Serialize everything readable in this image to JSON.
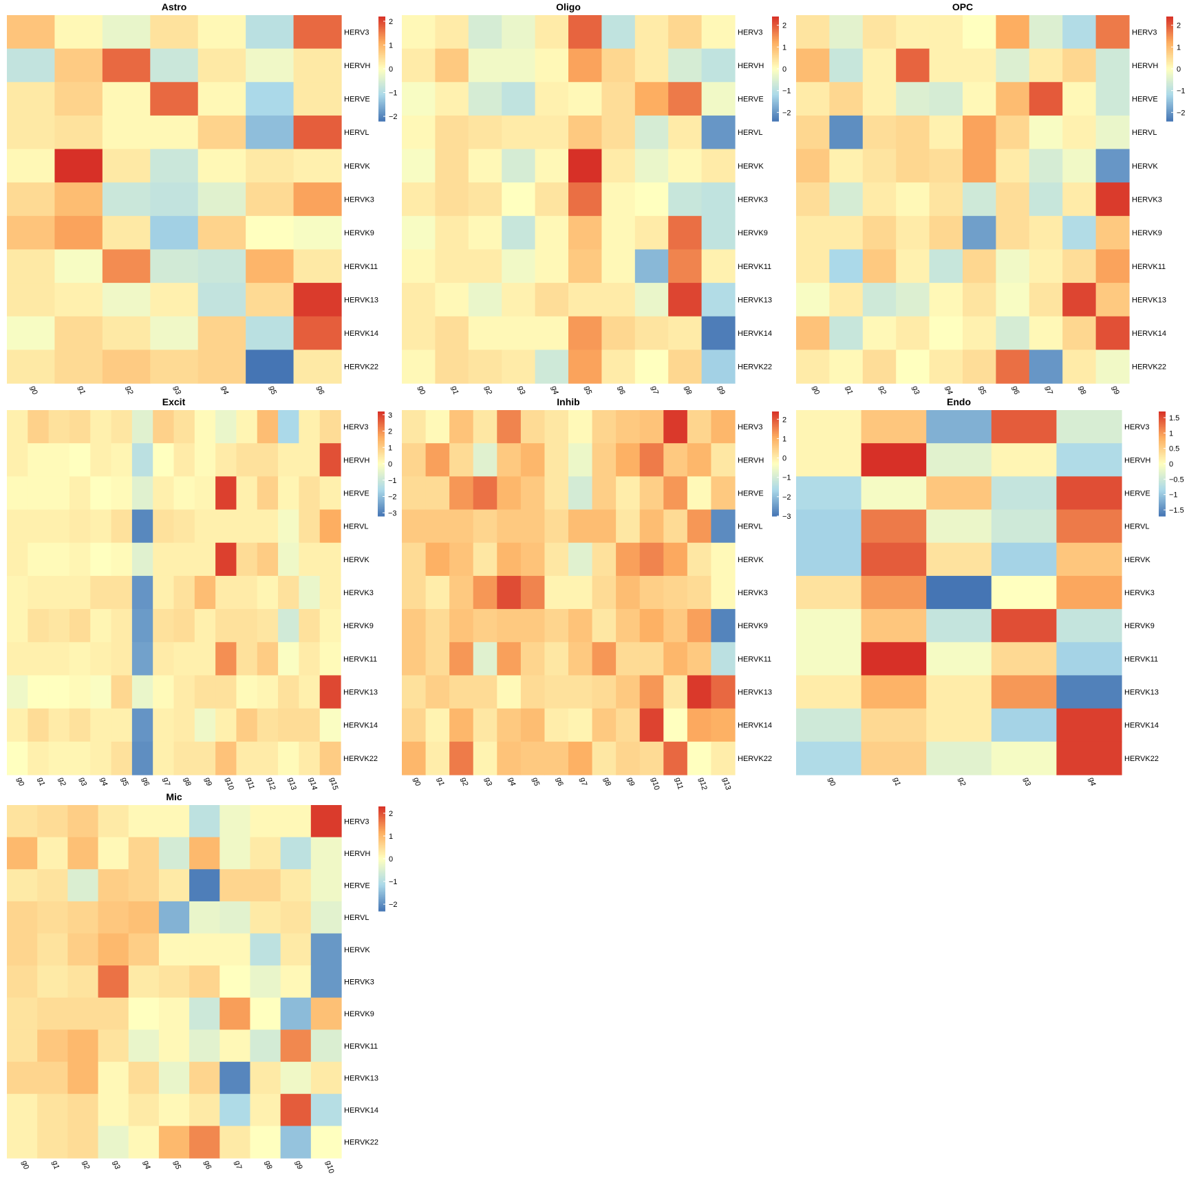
{
  "chart_data": {
    "type": "heatmap",
    "colors": {
      "low": "#4575b4",
      "mid_low": "#abd9e9",
      "mid": "#ffffbf",
      "mid_high": "#fdae61",
      "high": "#d73027"
    },
    "rows": [
      "HERV3",
      "HERVH",
      "HERVE",
      "HERVL",
      "HERVK",
      "HERVK3",
      "HERVK9",
      "HERVK11",
      "HERVK13",
      "HERVK14",
      "HERVK22"
    ],
    "panels": [
      {
        "title": "Astro",
        "columns": [
          "g0",
          "g1",
          "g2",
          "g3",
          "g4",
          "g5",
          "g6"
        ],
        "legend_ticks": [
          2,
          1,
          0,
          -1,
          -2
        ],
        "range": [
          -2.2,
          2.2
        ],
        "values": [
          [
            0.8,
            0.1,
            -0.3,
            0.4,
            0.1,
            -0.9,
            1.7
          ],
          [
            -0.8,
            0.7,
            1.7,
            -0.7,
            0.3,
            -0.2,
            0.3
          ],
          [
            0.3,
            0.6,
            0.1,
            1.7,
            0.1,
            -1.1,
            0.3
          ],
          [
            0.3,
            0.4,
            0.1,
            0.1,
            0.6,
            -1.4,
            1.8
          ],
          [
            0.1,
            2.2,
            0.3,
            -0.7,
            0.1,
            0.3,
            0.2
          ],
          [
            0.5,
            0.9,
            -0.7,
            -0.8,
            -0.4,
            0.5,
            1.2
          ],
          [
            0.8,
            1.2,
            0.3,
            -1.2,
            0.6,
            0.0,
            -0.1
          ],
          [
            0.3,
            -0.1,
            1.4,
            -0.6,
            -0.7,
            1.0,
            0.3
          ],
          [
            0.3,
            0.2,
            -0.2,
            0.2,
            -0.8,
            0.5,
            2.1
          ],
          [
            -0.1,
            0.5,
            0.3,
            -0.2,
            0.6,
            -0.9,
            1.8
          ],
          [
            0.3,
            0.5,
            0.7,
            0.5,
            0.6,
            -2.2,
            0.3
          ]
        ]
      },
      {
        "title": "Oligo",
        "columns": [
          "g0",
          "g1",
          "g2",
          "g3",
          "g4",
          "g5",
          "g6",
          "g7",
          "g8",
          "g9"
        ],
        "legend_ticks": [
          2,
          1,
          0,
          -1,
          -2
        ],
        "range": [
          -2.4,
          2.4
        ],
        "values": [
          [
            0.1,
            0.3,
            -0.6,
            -0.3,
            0.3,
            1.9,
            -0.9,
            0.3,
            0.6,
            0.1
          ],
          [
            0.3,
            0.8,
            -0.2,
            -0.2,
            0.1,
            1.3,
            0.6,
            0.3,
            -0.6,
            -0.9
          ],
          [
            -0.1,
            0.2,
            -0.6,
            -0.9,
            0.2,
            0.1,
            0.5,
            1.2,
            1.7,
            -0.2
          ],
          [
            0.1,
            0.5,
            0.4,
            0.3,
            0.3,
            0.8,
            0.5,
            -0.6,
            0.3,
            -2.0
          ],
          [
            -0.1,
            0.5,
            0.1,
            -0.6,
            0.1,
            2.4,
            0.3,
            -0.3,
            0.1,
            0.3
          ],
          [
            0.3,
            0.5,
            0.4,
            0.0,
            0.4,
            1.8,
            0.1,
            0.0,
            -0.8,
            -0.9
          ],
          [
            -0.1,
            0.3,
            0.1,
            -0.8,
            0.1,
            0.9,
            0.1,
            0.3,
            1.8,
            -0.9
          ],
          [
            0.1,
            0.3,
            0.3,
            -0.2,
            0.1,
            0.8,
            0.1,
            -1.6,
            1.6,
            0.2
          ],
          [
            0.3,
            0.1,
            -0.3,
            0.2,
            0.5,
            0.3,
            0.3,
            -0.3,
            2.2,
            -1.1
          ],
          [
            0.3,
            0.5,
            0.1,
            0.1,
            0.1,
            1.4,
            0.6,
            0.4,
            0.3,
            -2.3
          ],
          [
            0.1,
            0.5,
            0.4,
            0.3,
            -0.7,
            1.3,
            0.3,
            0.0,
            0.6,
            -1.3
          ]
        ]
      },
      {
        "title": "OPC",
        "columns": [
          "g0",
          "g1",
          "g2",
          "g3",
          "g4",
          "g5",
          "g6",
          "g7",
          "g8",
          "g9"
        ],
        "legend_ticks": [
          2,
          1,
          0,
          -1,
          -2
        ],
        "range": [
          -2.4,
          2.4
        ],
        "values": [
          [
            0.4,
            -0.4,
            0.4,
            0.2,
            0.2,
            0.0,
            1.2,
            -0.5,
            -1.1,
            1.7
          ],
          [
            1.0,
            -0.8,
            0.2,
            1.9,
            0.2,
            0.2,
            -0.5,
            0.3,
            0.6,
            -0.7
          ],
          [
            0.3,
            0.6,
            0.2,
            -0.5,
            -0.6,
            0.1,
            1.0,
            2.0,
            0.1,
            -0.7
          ],
          [
            0.6,
            -2.1,
            0.5,
            0.6,
            0.2,
            1.3,
            0.6,
            -0.1,
            0.2,
            -0.3
          ],
          [
            0.8,
            0.2,
            0.4,
            0.6,
            0.5,
            1.3,
            0.3,
            -0.6,
            -0.2,
            -2.0
          ],
          [
            0.5,
            -0.6,
            0.3,
            0.1,
            0.4,
            -0.7,
            0.5,
            -0.8,
            0.3,
            2.3
          ],
          [
            0.3,
            0.3,
            0.6,
            0.3,
            0.6,
            -1.9,
            0.5,
            0.3,
            -1.1,
            0.8
          ],
          [
            0.3,
            -1.2,
            0.8,
            0.2,
            -0.8,
            0.6,
            -0.2,
            0.2,
            0.5,
            1.3
          ],
          [
            -0.1,
            0.3,
            -0.7,
            -0.5,
            0.1,
            0.4,
            -0.1,
            0.4,
            2.2,
            0.8
          ],
          [
            0.9,
            -0.8,
            0.1,
            0.3,
            0.0,
            0.2,
            -0.6,
            0.1,
            0.6,
            2.1
          ],
          [
            0.3,
            0.1,
            0.5,
            0.0,
            0.3,
            0.5,
            1.8,
            -2.0,
            0.3,
            -0.2
          ]
        ]
      },
      {
        "title": "Excit",
        "columns": [
          "g0",
          "g1",
          "g2",
          "g3",
          "g4",
          "g5",
          "g6",
          "g7",
          "g8",
          "g9",
          "g10",
          "g11",
          "g12",
          "g13",
          "g14",
          "g15"
        ],
        "legend_ticks": [
          3,
          2,
          1,
          0,
          -1,
          -2,
          -3
        ],
        "range": [
          -3.2,
          3.2
        ],
        "values": [
          [
            0.3,
            0.9,
            0.6,
            0.7,
            0.3,
            0.5,
            -0.6,
            0.9,
            0.6,
            0.1,
            -0.4,
            0.2,
            1.3,
            -1.6,
            0.3,
            0.7
          ],
          [
            0.3,
            0.1,
            0.1,
            0.0,
            0.3,
            0.2,
            -1.3,
            0.0,
            0.4,
            0.1,
            0.4,
            0.6,
            0.6,
            0.3,
            0.3,
            2.8
          ],
          [
            0.1,
            0.1,
            0.1,
            0.3,
            0.0,
            0.1,
            -0.6,
            0.3,
            0.1,
            0.2,
            3.0,
            0.3,
            0.9,
            0.2,
            0.6,
            0.3
          ],
          [
            0.3,
            0.3,
            0.3,
            0.4,
            0.3,
            0.6,
            -2.9,
            0.6,
            0.5,
            0.3,
            0.3,
            0.3,
            0.3,
            -0.2,
            0.6,
            1.6
          ],
          [
            0.3,
            0.1,
            0.1,
            0.2,
            0.0,
            0.1,
            -0.6,
            0.3,
            0.3,
            0.3,
            3.0,
            0.7,
            1.0,
            -0.3,
            0.3,
            0.3
          ],
          [
            0.2,
            0.3,
            0.3,
            0.3,
            0.6,
            0.6,
            -2.7,
            0.3,
            0.6,
            1.3,
            0.4,
            0.4,
            0.2,
            0.6,
            -0.4,
            0.3
          ],
          [
            0.2,
            0.6,
            0.5,
            0.7,
            0.2,
            0.4,
            -2.6,
            0.6,
            0.7,
            0.3,
            0.6,
            0.6,
            0.5,
            -0.9,
            0.6,
            0.2
          ],
          [
            0.3,
            0.3,
            0.3,
            0.2,
            0.3,
            0.4,
            -2.5,
            0.4,
            0.3,
            0.3,
            2.0,
            0.6,
            1.0,
            -0.1,
            0.4,
            0.1
          ],
          [
            -0.3,
            0.0,
            0.0,
            0.1,
            -0.1,
            0.8,
            -0.4,
            0.1,
            0.4,
            0.6,
            0.6,
            0.1,
            0.2,
            0.6,
            0.3,
            2.9
          ],
          [
            0.3,
            0.7,
            0.4,
            0.6,
            0.3,
            0.3,
            -2.7,
            0.3,
            0.4,
            -0.3,
            0.3,
            1.0,
            0.6,
            0.7,
            0.7,
            -0.1
          ],
          [
            0.0,
            0.3,
            0.2,
            0.2,
            0.3,
            0.6,
            -2.8,
            0.3,
            0.5,
            0.5,
            1.2,
            0.4,
            0.4,
            0.1,
            0.4,
            1.0
          ]
        ]
      },
      {
        "title": "Inhib",
        "columns": [
          "g0",
          "g1",
          "g2",
          "g3",
          "g4",
          "g5",
          "g6",
          "g7",
          "g8",
          "g9",
          "g10",
          "g11",
          "g12",
          "g13"
        ],
        "legend_ticks": [
          2,
          1,
          0,
          -1,
          -2,
          -3
        ],
        "range": [
          -3.0,
          2.4
        ],
        "values": [
          [
            0.1,
            -0.2,
            0.7,
            0.1,
            1.5,
            0.3,
            0.1,
            -0.2,
            0.4,
            0.6,
            0.7,
            2.3,
            0.4,
            0.9
          ],
          [
            0.4,
            1.2,
            0.3,
            -0.8,
            0.6,
            0.9,
            0.1,
            -0.6,
            0.5,
            1.0,
            1.6,
            0.6,
            0.9,
            0.1
          ],
          [
            0.3,
            0.3,
            1.3,
            1.7,
            0.9,
            0.6,
            0.1,
            -1.0,
            0.5,
            0.0,
            0.5,
            1.3,
            -0.2,
            0.6
          ],
          [
            0.6,
            0.6,
            0.6,
            0.4,
            0.6,
            0.6,
            0.3,
            0.8,
            0.8,
            0.1,
            0.8,
            0.3,
            1.3,
            -2.7
          ],
          [
            0.3,
            1.0,
            0.7,
            0.1,
            0.9,
            0.7,
            0.1,
            -0.8,
            0.2,
            1.2,
            1.5,
            1.1,
            0.1,
            -0.2
          ],
          [
            0.3,
            0.0,
            0.6,
            1.3,
            2.1,
            1.5,
            -0.1,
            -0.1,
            0.3,
            0.8,
            0.5,
            0.4,
            0.3,
            -0.2
          ],
          [
            0.6,
            0.3,
            0.7,
            0.5,
            0.6,
            0.6,
            0.4,
            0.7,
            0.1,
            0.6,
            1.0,
            0.6,
            1.2,
            -2.8
          ],
          [
            0.6,
            0.3,
            1.3,
            -0.8,
            1.2,
            0.4,
            0.1,
            0.6,
            1.3,
            0.3,
            0.3,
            0.9,
            0.6,
            -1.4
          ],
          [
            0.2,
            0.5,
            0.3,
            0.3,
            -0.2,
            0.3,
            0.2,
            0.2,
            0.3,
            0.6,
            1.3,
            0.1,
            2.3,
            1.8
          ],
          [
            0.4,
            -0.1,
            0.9,
            0.1,
            0.6,
            0.8,
            0.0,
            -0.1,
            0.6,
            0.3,
            2.2,
            -0.3,
            1.1,
            1.0
          ],
          [
            0.9,
            0.0,
            1.6,
            -0.1,
            0.7,
            0.6,
            0.6,
            1.0,
            0.1,
            0.4,
            0.3,
            1.8,
            -0.3,
            0.0
          ]
        ]
      },
      {
        "title": "Endo",
        "columns": [
          "g0",
          "g1",
          "g2",
          "g3",
          "g4"
        ],
        "legend_ticks": [
          1.5,
          1,
          0.5,
          0,
          -0.5,
          -1,
          -1.5
        ],
        "range": [
          -1.7,
          1.7
        ],
        "values": [
          [
            0.1,
            0.6,
            -1.2,
            1.4,
            -0.4
          ],
          [
            0.1,
            1.7,
            -0.3,
            0.1,
            -0.8
          ],
          [
            -0.8,
            -0.1,
            0.6,
            -0.6,
            1.5
          ],
          [
            -0.9,
            1.2,
            -0.2,
            -0.5,
            1.2
          ],
          [
            -0.9,
            1.4,
            0.3,
            -0.9,
            0.6
          ],
          [
            0.3,
            1.0,
            -1.7,
            0.0,
            0.9
          ],
          [
            -0.1,
            0.6,
            -0.6,
            1.5,
            -0.6
          ],
          [
            -0.1,
            1.7,
            -0.1,
            0.4,
            -0.9
          ],
          [
            0.2,
            0.8,
            0.2,
            1.0,
            -1.6
          ],
          [
            -0.5,
            0.4,
            0.2,
            -0.9,
            1.6
          ],
          [
            -0.8,
            0.5,
            -0.3,
            -0.1,
            1.6
          ]
        ]
      },
      {
        "title": "Mic",
        "columns": [
          "g0",
          "g1",
          "g2",
          "g3",
          "g4",
          "g5",
          "g6",
          "g7",
          "g8",
          "g9",
          "g10"
        ],
        "legend_ticks": [
          2,
          1,
          0,
          -1,
          -2
        ],
        "range": [
          -2.3,
          2.3
        ],
        "values": [
          [
            0.4,
            0.5,
            0.7,
            0.3,
            0.1,
            0.1,
            -0.9,
            -0.2,
            0.1,
            0.1,
            2.2
          ],
          [
            1.0,
            0.2,
            0.9,
            0.1,
            0.6,
            -0.6,
            1.0,
            -0.2,
            0.3,
            -0.9,
            -0.2
          ],
          [
            0.3,
            0.4,
            -0.5,
            0.7,
            0.6,
            0.3,
            -2.2,
            0.6,
            0.6,
            0.3,
            -0.2
          ],
          [
            0.6,
            0.5,
            0.6,
            0.8,
            0.9,
            -1.6,
            -0.3,
            -0.4,
            0.3,
            0.4,
            -0.4
          ],
          [
            0.6,
            0.4,
            0.7,
            1.0,
            0.7,
            0.1,
            0.1,
            0.1,
            -0.9,
            0.3,
            -1.9
          ],
          [
            0.5,
            0.3,
            0.4,
            1.7,
            0.3,
            0.4,
            0.6,
            0.0,
            -0.3,
            0.1,
            -1.9
          ],
          [
            0.4,
            0.5,
            0.5,
            0.5,
            0.0,
            0.1,
            -0.7,
            1.3,
            0.0,
            -1.5,
            0.9
          ],
          [
            0.4,
            0.8,
            1.0,
            0.4,
            -0.3,
            0.1,
            -0.4,
            0.1,
            -0.6,
            1.5,
            -0.5
          ],
          [
            0.6,
            0.6,
            1.0,
            0.1,
            0.5,
            -0.3,
            0.6,
            -2.1,
            0.3,
            -0.2,
            0.3
          ],
          [
            0.2,
            0.4,
            0.5,
            0.1,
            0.3,
            0.1,
            0.3,
            -1.1,
            0.2,
            1.9,
            -1.0
          ],
          [
            0.2,
            0.4,
            0.5,
            -0.3,
            0.1,
            1.0,
            1.5,
            0.3,
            0.0,
            -1.4,
            0.0
          ]
        ]
      }
    ]
  }
}
